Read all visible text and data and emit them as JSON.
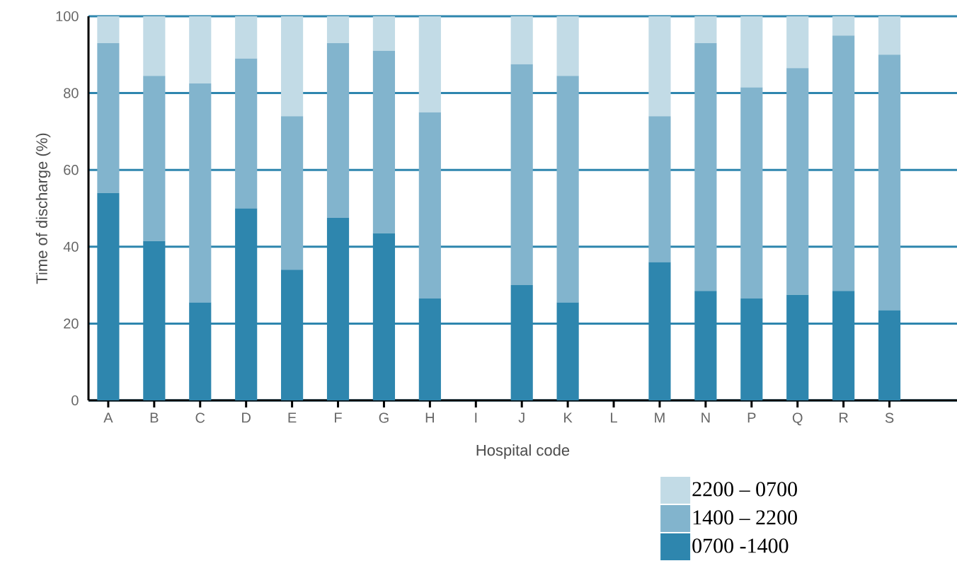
{
  "chart_data": {
    "type": "bar",
    "stacked": true,
    "xlabel": "Hospital code",
    "ylabel": "Time of discharge (%)",
    "categories": [
      "A",
      "B",
      "C",
      "D",
      "E",
      "F",
      "G",
      "H",
      "I",
      "J",
      "K",
      "L",
      "M",
      "N",
      "P",
      "Q",
      "R",
      "S"
    ],
    "series": [
      {
        "name": "0700 -1400",
        "color": "#2e86ae",
        "values": [
          54,
          41.5,
          25.5,
          50,
          34,
          47.5,
          43.5,
          26.5,
          null,
          30,
          25.5,
          null,
          36,
          28.5,
          26.5,
          27.5,
          28.5,
          23.5
        ]
      },
      {
        "name": "1400 – 2200",
        "color": "#82b4cd",
        "values": [
          39,
          43,
          57,
          39,
          40,
          45.5,
          47.5,
          48.5,
          null,
          57.5,
          59,
          null,
          38,
          64.5,
          55,
          59,
          66.5,
          66.5
        ]
      },
      {
        "name": "2200 – 0700",
        "color": "#c2dbe6",
        "values": [
          7,
          15.5,
          17.5,
          11,
          26,
          7,
          9,
          25,
          null,
          12.5,
          15.5,
          null,
          26,
          7,
          18.5,
          13.5,
          5,
          10
        ]
      }
    ],
    "ylim": [
      0,
      100
    ],
    "yticks": [
      0,
      20,
      40,
      60,
      80,
      100
    ],
    "grid": "y",
    "legend": "bottom right"
  }
}
